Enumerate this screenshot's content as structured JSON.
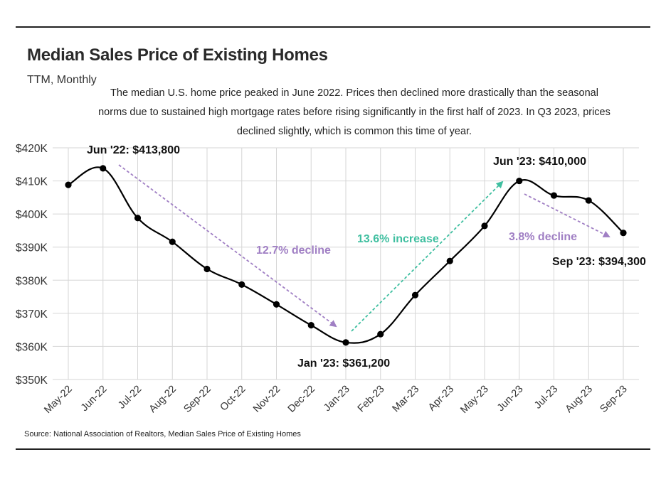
{
  "header": {
    "title": "Median Sales Price of Existing Homes",
    "subtitle": "TTM, Monthly",
    "description": "The median U.S. home price peaked in June 2022. Prices then declined more drastically than the seasonal norms due to sustained high mortgage rates before rising significantly in the first half of 2023. In Q3 2023, prices declined slightly, which is common this time of year."
  },
  "footer": {
    "source": "Source:  National Association of Realtors, Median Sales Price of Existing Homes"
  },
  "colors": {
    "line": "#000000",
    "decline": "#a07fc4",
    "increase": "#3fbfa0",
    "grid": "#d6d6d6"
  },
  "chart_data": {
    "type": "line",
    "categories": [
      "May-22",
      "Jun-22",
      "Jul-22",
      "Aug-22",
      "Sep-22",
      "Oct-22",
      "Nov-22",
      "Dec-22",
      "Jan-23",
      "Feb-23",
      "Mar-23",
      "Apr-23",
      "May-23",
      "Jun-23",
      "Jul-23",
      "Aug-23",
      "Sep-23"
    ],
    "values": [
      408800,
      413800,
      398800,
      391600,
      383400,
      378700,
      372700,
      366400,
      361200,
      363700,
      375500,
      385800,
      396400,
      410000,
      405600,
      404100,
      394300
    ],
    "ylim": [
      350000,
      420000
    ],
    "yticks": [
      350000,
      360000,
      370000,
      380000,
      390000,
      400000,
      410000,
      420000
    ],
    "ytick_labels": [
      "$350K",
      "$360K",
      "$370K",
      "$380K",
      "$390K",
      "$400K",
      "$410K",
      "$420K"
    ],
    "grid": true,
    "annotations": {
      "peak_2022": "Jun '22: $413,800",
      "trough": "Jan '23: $361,200",
      "peak_2023": "Jun '23: $410,000",
      "latest": "Sep '23: $394,300",
      "decline_1": "12.7% decline",
      "increase": "13.6% increase",
      "decline_2": "3.8% decline"
    }
  }
}
